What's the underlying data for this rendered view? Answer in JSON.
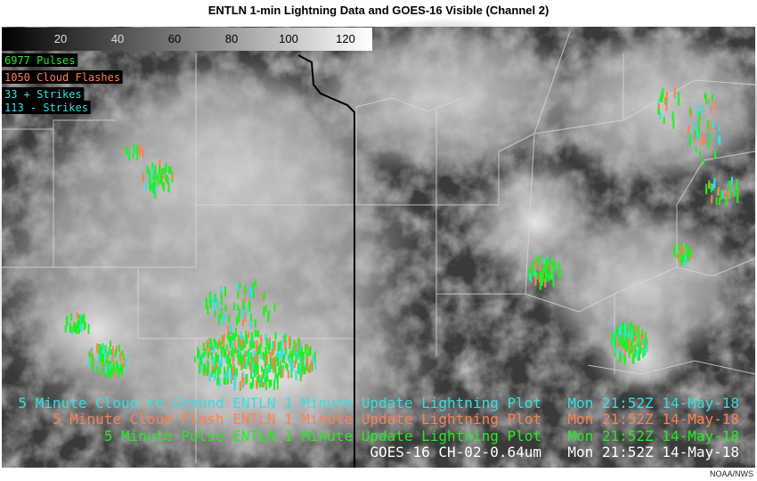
{
  "header": {
    "title": "ENTLN 1-min Lightning Data and GOES-16 Visible (Channel 2)"
  },
  "colorbar": {
    "ticks": [
      "20",
      "40",
      "60",
      "80",
      "100",
      "120"
    ]
  },
  "legend": [
    {
      "text": "6977 Pulses",
      "color": "#22ee22"
    },
    {
      "text": "1050 Cloud Flashes",
      "color": "#ff8050"
    },
    {
      "text": "33 + Strikes",
      "color": "#33e0e0"
    },
    {
      "text": "113 - Strikes",
      "color": "#33e0e0"
    }
  ],
  "captions": [
    {
      "text": "5 Minute Cloud to Ground ENTLN 1 Minute Update Lightning Plot",
      "time": "Mon 21:52Z 14-May-18",
      "color": "#33e0e0"
    },
    {
      "text": "5 Minute Cloud Flash ENTLN 1 Minute Update Lightning Plot",
      "time": "Mon 21:52Z 14-May-18",
      "color": "#ff8050"
    },
    {
      "text": "5 Minute Pulse ENTLN 1 Minute Update Lightning Plot",
      "time": "Mon 21:52Z 14-May-18",
      "color": "#22ee22"
    },
    {
      "text": "GOES-16 CH-02-0.64um",
      "time": "Mon 21:52Z 14-May-18",
      "color": "#ffffff"
    }
  ],
  "credit": "NOAA/NWS"
}
